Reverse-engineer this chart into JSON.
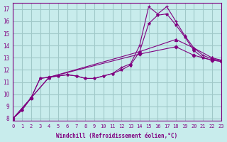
{
  "xlabel": "Windchill (Refroidissement éolien,°C)",
  "background_color": "#c8ecec",
  "grid_color": "#a0c8c8",
  "line_color": "#800080",
  "xlim": [
    0,
    23
  ],
  "ylim": [
    8,
    17.5
  ],
  "yticks": [
    8,
    9,
    10,
    11,
    12,
    13,
    14,
    15,
    16,
    17
  ],
  "xticks": [
    0,
    1,
    2,
    3,
    4,
    5,
    6,
    7,
    8,
    9,
    10,
    11,
    12,
    13,
    14,
    15,
    16,
    17,
    18,
    19,
    20,
    21,
    22,
    23
  ],
  "series1_x": [
    0,
    1,
    2,
    3,
    4,
    5,
    6,
    7,
    8,
    9,
    10,
    11,
    12,
    13,
    14,
    15,
    16,
    17,
    18,
    19,
    20,
    21,
    22,
    23
  ],
  "series1_y": [
    8.0,
    8.7,
    9.7,
    11.3,
    11.4,
    11.5,
    11.6,
    11.5,
    11.3,
    11.3,
    11.5,
    11.7,
    12.2,
    12.5,
    14.0,
    17.2,
    16.6,
    17.2,
    16.0,
    14.8,
    13.8,
    13.2,
    12.9,
    12.8
  ],
  "series2_x": [
    0,
    1,
    2,
    3,
    4,
    5,
    6,
    7,
    8,
    9,
    10,
    11,
    12,
    13,
    14,
    15,
    16,
    17,
    18,
    19,
    20,
    21,
    22,
    23
  ],
  "series2_y": [
    8.0,
    8.7,
    9.7,
    11.3,
    11.4,
    11.5,
    11.6,
    11.5,
    11.3,
    11.3,
    11.5,
    11.7,
    12.0,
    12.4,
    13.5,
    15.8,
    16.5,
    16.6,
    15.7,
    14.7,
    13.6,
    13.0,
    12.8,
    12.7
  ],
  "series3_x": [
    0,
    2,
    4,
    14,
    18,
    20,
    22,
    23
  ],
  "series3_y": [
    8.0,
    9.7,
    11.4,
    13.5,
    14.5,
    13.8,
    13.0,
    12.8
  ],
  "series4_x": [
    0,
    2,
    4,
    14,
    18,
    20,
    22,
    23
  ],
  "series4_y": [
    8.0,
    9.7,
    11.4,
    13.3,
    13.9,
    13.2,
    12.8,
    12.7
  ]
}
